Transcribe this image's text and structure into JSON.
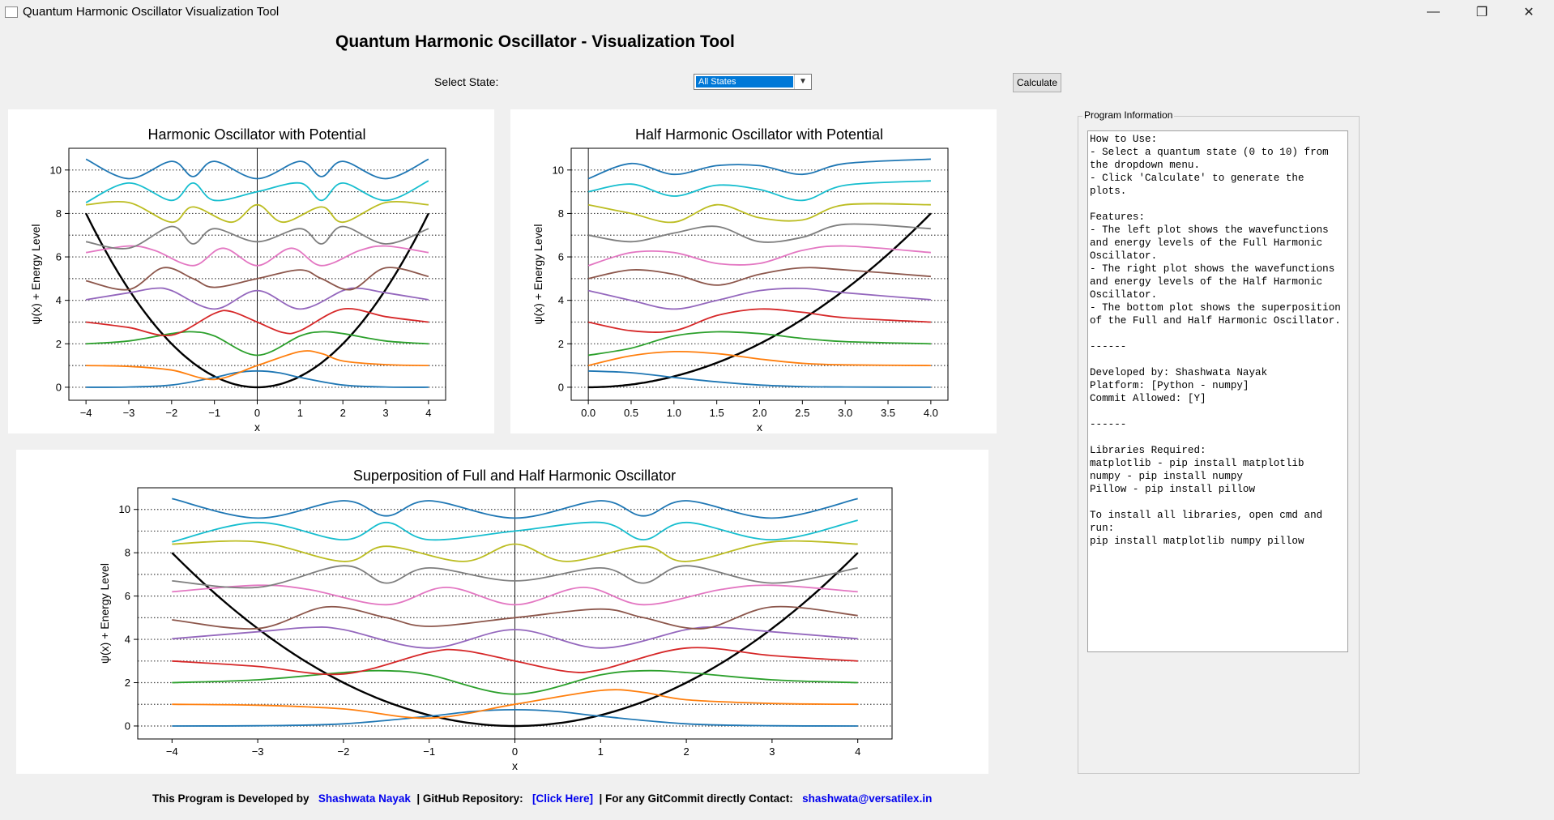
{
  "window": {
    "title": "Quantum Harmonic Oscillator Visualization Tool",
    "minimize": "—",
    "restore": "❐",
    "close": "✕"
  },
  "header": {
    "title": "Quantum Harmonic Oscillator - Visualization Tool"
  },
  "controls": {
    "select_label": "Select State:",
    "selected_state": "All States",
    "calculate_label": "Calculate"
  },
  "palette": [
    "#1f77b4",
    "#ff7f0e",
    "#2ca02c",
    "#d62728",
    "#9467bd",
    "#8c564b",
    "#e377c2",
    "#7f7f7f",
    "#bcbd22",
    "#17becf"
  ],
  "chart_data": [
    {
      "id": "full",
      "type": "line",
      "title": "Harmonic Oscillator with Potential",
      "xlabel": "x",
      "ylabel": "ψ(x) + Energy Level",
      "xlim": [
        -4.4,
        4.4
      ],
      "ylim": [
        -0.6,
        11.0
      ],
      "xticks": [
        -4,
        -3,
        -2,
        -1,
        0,
        1,
        2,
        3,
        4
      ],
      "xtick_labels": [
        "−4",
        "−3",
        "−2",
        "−1",
        "0",
        "1",
        "2",
        "3",
        "4"
      ],
      "yticks": [
        0,
        2,
        4,
        6,
        8,
        10
      ],
      "energy_levels": [
        0,
        1,
        2,
        3,
        4,
        5,
        6,
        7,
        8,
        9,
        10
      ],
      "potential": "0.5*x^2",
      "x_range": [
        -4,
        4
      ],
      "series": [
        {
          "n": 0,
          "x": [
            -4,
            -3,
            -2,
            -1,
            -0.5,
            0,
            0.5,
            1,
            2,
            3,
            4
          ],
          "y": [
            0.0,
            0.01,
            0.1,
            0.45,
            0.67,
            0.75,
            0.67,
            0.45,
            0.1,
            0.01,
            0.0
          ]
        },
        {
          "n": 1,
          "x": [
            -4,
            -3,
            -2,
            -1,
            0,
            1,
            1.5,
            2,
            3,
            4
          ],
          "y": [
            1.0,
            0.96,
            0.79,
            0.36,
            1.0,
            1.64,
            1.55,
            1.21,
            1.04,
            1.0
          ]
        },
        {
          "n": 2,
          "x": [
            -4,
            -3,
            -2,
            -1.5,
            -1,
            0,
            1,
            1.5,
            2,
            3,
            4
          ],
          "y": [
            2.0,
            2.13,
            2.47,
            2.55,
            2.36,
            1.47,
            2.36,
            2.55,
            2.47,
            2.13,
            2.0
          ]
        },
        {
          "n": 3,
          "x": [
            -4,
            -3,
            -2,
            -1,
            -0.6,
            0,
            0.6,
            1,
            2,
            3,
            4
          ],
          "y": [
            3.0,
            2.75,
            2.4,
            3.4,
            3.48,
            3.0,
            2.52,
            2.6,
            3.6,
            3.25,
            3.0
          ]
        },
        {
          "n": 4,
          "x": [
            -4,
            -3,
            -2.4,
            -2,
            -1,
            0,
            1,
            2,
            2.4,
            3,
            4
          ],
          "y": [
            4.03,
            4.35,
            4.55,
            4.45,
            3.6,
            4.45,
            3.6,
            4.45,
            4.55,
            4.35,
            4.03
          ]
        },
        {
          "n": 5,
          "x": [
            -4,
            -3,
            -2.2,
            -1.5,
            -1,
            0,
            1,
            1.5,
            2.2,
            3,
            4
          ],
          "y": [
            4.9,
            4.5,
            5.5,
            5.0,
            4.6,
            5.0,
            5.4,
            5.0,
            4.5,
            5.5,
            5.1
          ]
        },
        {
          "n": 6,
          "x": [
            -4,
            -3,
            -2.4,
            -1.5,
            -0.8,
            0,
            0.8,
            1.5,
            2.4,
            3,
            4
          ],
          "y": [
            6.2,
            6.5,
            6.3,
            5.6,
            6.4,
            5.6,
            6.4,
            5.6,
            6.3,
            6.5,
            6.2
          ]
        },
        {
          "n": 7,
          "x": [
            -4,
            -3,
            -2,
            -1.5,
            -1,
            0,
            1,
            1.5,
            2,
            3,
            4
          ],
          "y": [
            6.7,
            6.4,
            7.4,
            6.6,
            7.3,
            6.7,
            7.3,
            6.6,
            7.4,
            6.6,
            7.3
          ]
        },
        {
          "n": 8,
          "x": [
            -4,
            -3,
            -2,
            -1.5,
            -0.6,
            0,
            0.6,
            1.5,
            2,
            3,
            4
          ],
          "y": [
            8.4,
            8.5,
            7.6,
            8.3,
            7.6,
            8.4,
            7.6,
            8.3,
            7.6,
            8.5,
            8.4
          ]
        },
        {
          "n": 9,
          "x": [
            -4,
            -3,
            -2,
            -1.5,
            -1,
            0,
            1,
            1.5,
            2,
            3,
            4
          ],
          "y": [
            8.5,
            9.4,
            8.6,
            9.4,
            8.6,
            9.0,
            9.4,
            8.6,
            9.4,
            8.6,
            9.5
          ]
        },
        {
          "n": 10,
          "x": [
            -4,
            -3,
            -2,
            -1.5,
            -1,
            0,
            1,
            1.5,
            2,
            3,
            4
          ],
          "y": [
            10.5,
            9.6,
            10.4,
            9.7,
            10.4,
            9.6,
            10.4,
            9.7,
            10.4,
            9.6,
            10.5
          ]
        }
      ]
    },
    {
      "id": "half",
      "type": "line",
      "title": "Half Harmonic Oscillator with Potential",
      "xlabel": "x",
      "ylabel": "ψ(x) + Energy Level",
      "xlim": [
        -0.2,
        4.2
      ],
      "ylim": [
        -0.6,
        11.0
      ],
      "xticks": [
        0,
        0.5,
        1,
        1.5,
        2,
        2.5,
        3,
        3.5,
        4
      ],
      "xtick_labels": [
        "0.0",
        "0.5",
        "1.0",
        "1.5",
        "2.0",
        "2.5",
        "3.0",
        "3.5",
        "4.0"
      ],
      "yticks": [
        0,
        2,
        4,
        6,
        8,
        10
      ],
      "energy_levels": [
        0,
        1,
        2,
        3,
        4,
        5,
        6,
        7,
        8,
        9,
        10
      ],
      "potential": "0.5*x^2",
      "x_range": [
        0,
        4
      ],
      "series": [
        {
          "n": 0,
          "x": [
            0,
            0.5,
            1,
            1.5,
            2,
            2.5,
            3,
            4
          ],
          "y": [
            0.75,
            0.67,
            0.45,
            0.25,
            0.1,
            0.03,
            0.01,
            0.0
          ]
        },
        {
          "n": 1,
          "x": [
            0,
            0.5,
            1,
            1.5,
            2,
            2.5,
            3,
            4
          ],
          "y": [
            1.0,
            1.45,
            1.64,
            1.55,
            1.3,
            1.1,
            1.03,
            1.0
          ]
        },
        {
          "n": 2,
          "x": [
            0,
            0.5,
            1,
            1.5,
            2,
            2.5,
            3,
            4
          ],
          "y": [
            1.47,
            1.8,
            2.36,
            2.55,
            2.47,
            2.25,
            2.1,
            2.0
          ]
        },
        {
          "n": 3,
          "x": [
            0,
            0.5,
            1,
            1.5,
            2,
            2.5,
            3,
            4
          ],
          "y": [
            3.0,
            2.6,
            2.6,
            3.3,
            3.6,
            3.45,
            3.2,
            3.0
          ]
        },
        {
          "n": 4,
          "x": [
            0,
            0.5,
            1,
            1.5,
            2,
            2.5,
            3,
            4
          ],
          "y": [
            4.45,
            4.0,
            3.6,
            4.0,
            4.45,
            4.55,
            4.35,
            4.03
          ]
        },
        {
          "n": 5,
          "x": [
            0,
            0.5,
            1,
            1.5,
            2,
            2.5,
            3,
            4
          ],
          "y": [
            5.0,
            5.4,
            5.2,
            4.7,
            5.2,
            5.5,
            5.4,
            5.1
          ]
        },
        {
          "n": 6,
          "x": [
            0,
            0.5,
            1,
            1.5,
            2,
            2.5,
            3,
            4
          ],
          "y": [
            5.6,
            6.2,
            6.2,
            5.7,
            5.7,
            6.3,
            6.5,
            6.2
          ]
        },
        {
          "n": 7,
          "x": [
            0,
            0.5,
            1,
            1.5,
            2,
            2.5,
            3,
            4
          ],
          "y": [
            7.0,
            6.7,
            7.1,
            7.4,
            6.7,
            6.9,
            7.5,
            7.3
          ]
        },
        {
          "n": 8,
          "x": [
            0,
            0.5,
            1,
            1.5,
            2,
            2.5,
            3,
            4
          ],
          "y": [
            8.4,
            8.0,
            7.6,
            8.4,
            7.8,
            7.7,
            8.4,
            8.4
          ]
        },
        {
          "n": 9,
          "x": [
            0,
            0.5,
            1,
            1.5,
            2,
            2.5,
            3,
            4
          ],
          "y": [
            9.0,
            9.35,
            8.8,
            9.3,
            9.1,
            8.6,
            9.3,
            9.5
          ]
        },
        {
          "n": 10,
          "x": [
            0,
            0.5,
            1,
            1.5,
            2,
            2.5,
            3,
            4
          ],
          "y": [
            9.6,
            10.3,
            9.8,
            10.2,
            10.2,
            9.8,
            10.3,
            10.5
          ]
        }
      ]
    },
    {
      "id": "super",
      "type": "line",
      "title": "Superposition of Full and Half Harmonic Oscillator",
      "xlabel": "x",
      "ylabel": "ψ(x) + Energy Level",
      "xlim": [
        -4.4,
        4.4
      ],
      "ylim": [
        -0.6,
        11.0
      ],
      "xticks": [
        -4,
        -3,
        -2,
        -1,
        0,
        1,
        2,
        3,
        4
      ],
      "xtick_labels": [
        "−4",
        "−3",
        "−2",
        "−1",
        "0",
        "1",
        "2",
        "3",
        "4"
      ],
      "yticks": [
        0,
        2,
        4,
        6,
        8,
        10
      ],
      "energy_levels": [
        0,
        1,
        2,
        3,
        4,
        5,
        6,
        7,
        8,
        9,
        10
      ],
      "potential": "0.5*x^2",
      "x_range": [
        -4,
        4
      ],
      "series": [
        {
          "n": 0,
          "x": [
            -4,
            -3,
            -2,
            -1,
            -0.5,
            0,
            0.5,
            1,
            2,
            3,
            4
          ],
          "y": [
            0.0,
            0.01,
            0.1,
            0.45,
            0.67,
            0.75,
            0.67,
            0.45,
            0.1,
            0.01,
            0.0
          ]
        },
        {
          "n": 1,
          "x": [
            -4,
            -3,
            -2,
            -1,
            0,
            1,
            1.5,
            2,
            3,
            4
          ],
          "y": [
            1.0,
            0.96,
            0.79,
            0.36,
            1.0,
            1.64,
            1.55,
            1.21,
            1.04,
            1.0
          ]
        },
        {
          "n": 2,
          "x": [
            -4,
            -3,
            -2,
            -1.5,
            -1,
            0,
            1,
            1.5,
            2,
            3,
            4
          ],
          "y": [
            2.0,
            2.13,
            2.47,
            2.55,
            2.36,
            1.47,
            2.36,
            2.55,
            2.47,
            2.13,
            2.0
          ]
        },
        {
          "n": 3,
          "x": [
            -4,
            -3,
            -2,
            -1,
            -0.6,
            0,
            0.6,
            1,
            2,
            3,
            4
          ],
          "y": [
            3.0,
            2.75,
            2.4,
            3.4,
            3.48,
            3.0,
            2.52,
            2.6,
            3.6,
            3.25,
            3.0
          ]
        },
        {
          "n": 4,
          "x": [
            -4,
            -3,
            -2.4,
            -2,
            -1,
            0,
            1,
            2,
            2.4,
            3,
            4
          ],
          "y": [
            4.03,
            4.35,
            4.55,
            4.45,
            3.6,
            4.45,
            3.6,
            4.45,
            4.55,
            4.35,
            4.03
          ]
        },
        {
          "n": 5,
          "x": [
            -4,
            -3,
            -2.2,
            -1.5,
            -1,
            0,
            1,
            1.5,
            2.2,
            3,
            4
          ],
          "y": [
            4.9,
            4.5,
            5.5,
            5.0,
            4.6,
            5.0,
            5.4,
            5.0,
            4.5,
            5.5,
            5.1
          ]
        },
        {
          "n": 6,
          "x": [
            -4,
            -3,
            -2.4,
            -1.5,
            -0.8,
            0,
            0.8,
            1.5,
            2.4,
            3,
            4
          ],
          "y": [
            6.2,
            6.5,
            6.3,
            5.6,
            6.4,
            5.6,
            6.4,
            5.6,
            6.3,
            6.5,
            6.2
          ]
        },
        {
          "n": 7,
          "x": [
            -4,
            -3,
            -2,
            -1.5,
            -1,
            0,
            1,
            1.5,
            2,
            3,
            4
          ],
          "y": [
            6.7,
            6.4,
            7.4,
            6.6,
            7.3,
            6.7,
            7.3,
            6.6,
            7.4,
            6.6,
            7.3
          ]
        },
        {
          "n": 8,
          "x": [
            -4,
            -3,
            -2,
            -1.5,
            -0.6,
            0,
            0.6,
            1.5,
            2,
            3,
            4
          ],
          "y": [
            8.4,
            8.5,
            7.6,
            8.3,
            7.6,
            8.4,
            7.6,
            8.3,
            7.6,
            8.5,
            8.4
          ]
        },
        {
          "n": 9,
          "x": [
            -4,
            -3,
            -2,
            -1.5,
            -1,
            0,
            1,
            1.5,
            2,
            3,
            4
          ],
          "y": [
            8.5,
            9.4,
            8.6,
            9.4,
            8.6,
            9.0,
            9.4,
            8.6,
            9.4,
            8.6,
            9.5
          ]
        },
        {
          "n": 10,
          "x": [
            -4,
            -3,
            -2,
            -1.5,
            -1,
            0,
            1,
            1.5,
            2,
            3,
            4
          ],
          "y": [
            10.5,
            9.6,
            10.4,
            9.7,
            10.4,
            9.6,
            10.4,
            9.7,
            10.4,
            9.6,
            10.5
          ]
        }
      ]
    }
  ],
  "info": {
    "legend": "Program Information",
    "text": "How to Use:\n- Select a quantum state (0 to 10) from the dropdown menu.\n- Click 'Calculate' to generate the plots.\n\nFeatures:\n- The left plot shows the wavefunctions and energy levels of the Full Harmonic Oscillator.\n- The right plot shows the wavefunctions and energy levels of the Half Harmonic Oscillator.\n- The bottom plot shows the superposition of the Full and Half Harmonic Oscillator.\n\n------\n\nDeveloped by: Shashwata Nayak\nPlatform: [Python - numpy]\nCommit Allowed: [Y]\n\n------\n\nLibraries Required:\nmatplotlib - pip install matplotlib\nnumpy - pip install numpy\nPillow - pip install pillow\n\nTo install all libraries, open cmd and run:\npip install matplotlib numpy pillow"
  },
  "footer": {
    "developed_by": "This Program is Developed by",
    "author": "Shashwata Nayak",
    "repo_label": "| GitHub Repository:",
    "repo_link": "[Click Here]",
    "contact_label": "| For any GitCommit directly Contact:",
    "email": "shashwata@versatilex.in"
  }
}
